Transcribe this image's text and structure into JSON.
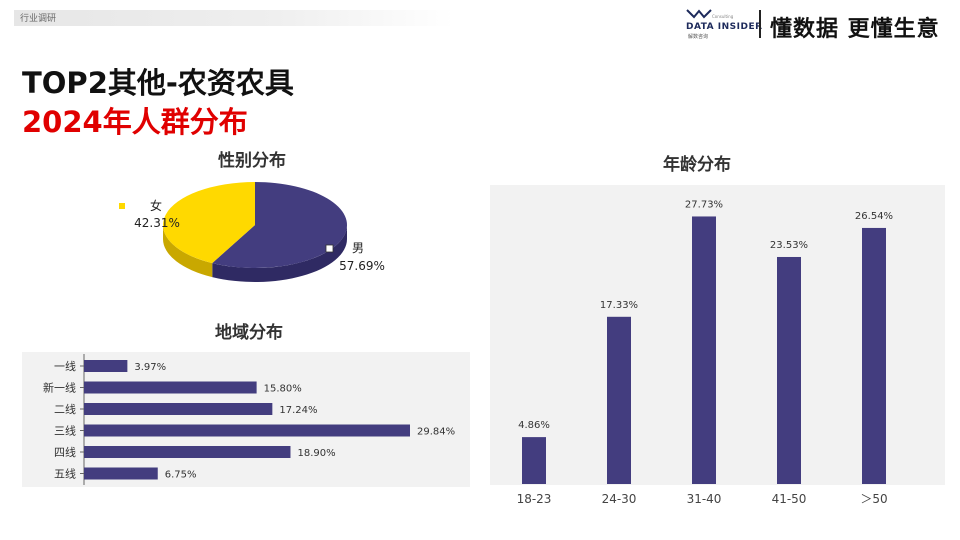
{
  "header": {
    "tag": "行业调研",
    "logo": {
      "small": "Consulting",
      "text": "DATA INSIDER",
      "sub": "解数咨询"
    },
    "slogan": "懂数据 更懂生意"
  },
  "title": {
    "line1": "TOP2其他-农资农具",
    "line2": "2024年人群分布"
  },
  "colors": {
    "series": "#433d7f",
    "female": "#ffd900",
    "accent_red": "#e00000"
  },
  "chart_data": [
    {
      "type": "pie",
      "title": "性别分布",
      "slices": [
        {
          "label": "男",
          "value": 57.69,
          "display": "57.69%"
        },
        {
          "label": "女",
          "value": 42.31,
          "display": "42.31%"
        }
      ]
    },
    {
      "type": "bar",
      "orientation": "horizontal",
      "title": "地域分布",
      "categories": [
        "一线",
        "新一线",
        "二线",
        "三线",
        "四线",
        "五线"
      ],
      "values": [
        3.97,
        15.8,
        17.24,
        29.84,
        18.9,
        6.75
      ],
      "labels": [
        "3.97%",
        "15.80%",
        "17.24%",
        "29.84%",
        "18.90%",
        "6.75%"
      ]
    },
    {
      "type": "bar",
      "title": "年龄分布",
      "categories": [
        "18-23",
        "24-30",
        "31-40",
        "41-50",
        "＞50"
      ],
      "values": [
        4.86,
        17.33,
        27.73,
        23.53,
        26.54
      ],
      "labels": [
        "4.86%",
        "17.33%",
        "27.73%",
        "23.53%",
        "26.54%"
      ]
    }
  ]
}
